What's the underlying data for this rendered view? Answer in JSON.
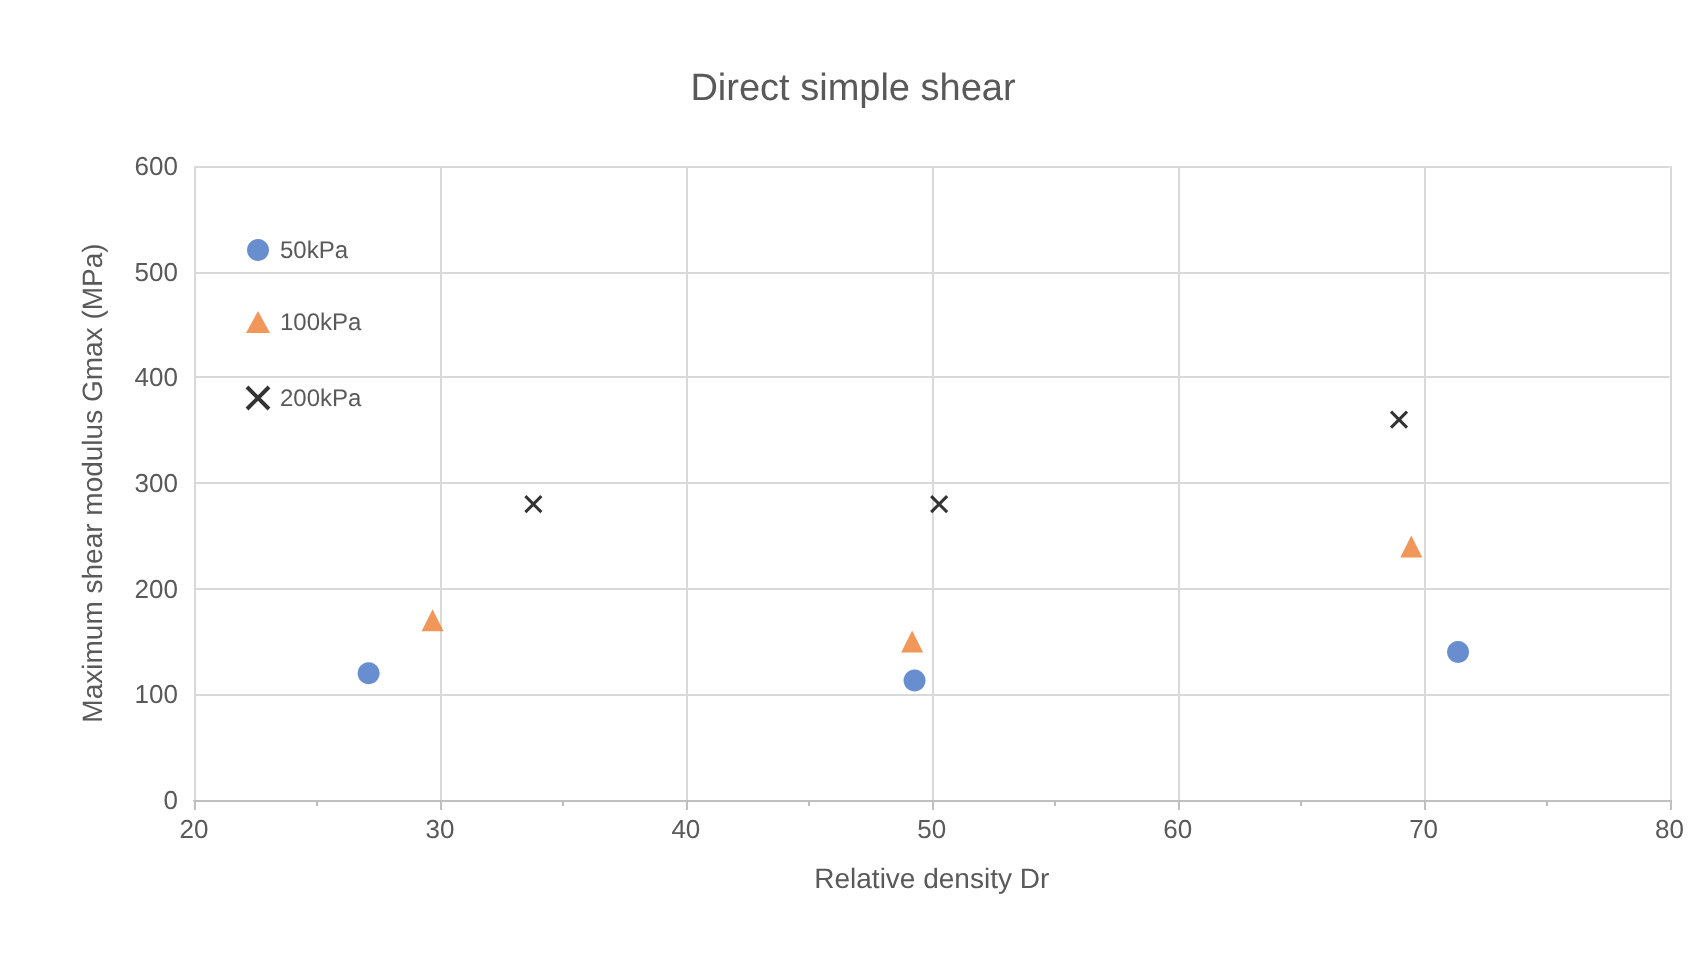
{
  "chart_data": {
    "type": "scatter",
    "title": "Direct simple shear",
    "xlabel": "Relative density Dr",
    "ylabel": "Maximum shear modulus Gmax (MPa)",
    "xlim": [
      20,
      80
    ],
    "xticks": [
      20,
      30,
      40,
      50,
      60,
      70,
      80
    ],
    "ylim": [
      0,
      600
    ],
    "yticks": [
      0,
      100,
      200,
      300,
      400,
      500,
      600
    ],
    "grid": true,
    "legend": "top left",
    "series": [
      {
        "name": "50kPa",
        "color": "#4472c4",
        "marker": "circle",
        "x": [
          27.1,
          49.3,
          71.4
        ],
        "values": [
          120,
          113,
          140
        ]
      },
      {
        "name": "100kPa",
        "color": "#ed7d31",
        "marker": "triangle",
        "x": [
          29.7,
          49.2,
          69.5
        ],
        "values": [
          170,
          150,
          240
        ]
      },
      {
        "name": "200kPa",
        "color": "#000000",
        "marker": "cross",
        "x": [
          33.8,
          50.3,
          69.0
        ],
        "values": [
          280,
          280,
          360
        ]
      }
    ]
  }
}
